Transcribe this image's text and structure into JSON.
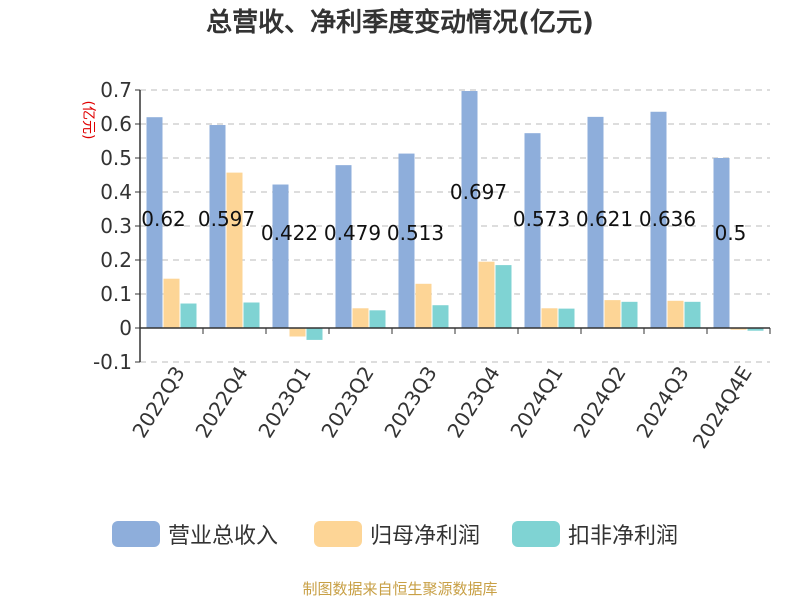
{
  "chart_data": {
    "type": "bar",
    "title": "总营收、净利季度变动情况(亿元)",
    "unit_label": "(亿元)",
    "categories": [
      "2022Q3",
      "2022Q4",
      "2023Q1",
      "2023Q2",
      "2023Q3",
      "2023Q4",
      "2024Q1",
      "2024Q2",
      "2024Q3",
      "2024Q4E"
    ],
    "series": [
      {
        "name": "营业总收入",
        "color": "#8eaedb",
        "values": [
          0.62,
          0.597,
          0.422,
          0.479,
          0.513,
          0.697,
          0.573,
          0.621,
          0.636,
          0.5
        ]
      },
      {
        "name": "归母净利润",
        "color": "#fdd596",
        "values": [
          0.145,
          0.457,
          -0.025,
          0.058,
          0.13,
          0.195,
          0.058,
          0.082,
          0.08,
          -0.005
        ]
      },
      {
        "name": "扣非净利润",
        "color": "#7fd3d3",
        "values": [
          0.072,
          0.075,
          -0.035,
          0.052,
          0.067,
          0.185,
          0.057,
          0.077,
          0.077,
          -0.008
        ]
      }
    ],
    "data_labels": [
      "0.62",
      "0.597",
      "0.422",
      "0.479",
      "0.513",
      "0.697",
      "0.573",
      "0.621",
      "0.636",
      "0.5"
    ],
    "y_ticks": [
      "-0.1",
      "0",
      "0.1",
      "0.2",
      "0.3",
      "0.4",
      "0.5",
      "0.6",
      "0.7"
    ],
    "ylim": [
      -0.1,
      0.7
    ],
    "grid": true,
    "legend_position": "bottom"
  },
  "source_note": "制图数据来自恒生聚源数据库"
}
